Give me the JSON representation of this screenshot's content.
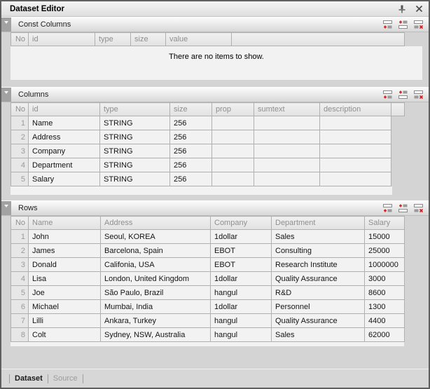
{
  "window": {
    "title": "Dataset Editor"
  },
  "colors": {
    "accent_red": "#d02020",
    "panel_bg": "#d4d4d4",
    "grid_body_bg": "#f2f2f2",
    "grid_header_bg": "#e7e7e7",
    "header_text": "#8f8f8f"
  },
  "icons": {
    "titlebar": [
      "pin-icon",
      "close-icon"
    ],
    "section_tools": [
      "add-row-icon",
      "insert-row-icon",
      "delete-row-icon"
    ],
    "collapse": "chevron-down-icon"
  },
  "sections": {
    "const_columns": {
      "title": "Const Columns",
      "headers": [
        "No",
        "id",
        "type",
        "size",
        "value",
        ""
      ],
      "empty_message": "There are no items to show."
    },
    "columns": {
      "title": "Columns",
      "headers": [
        "No",
        "id",
        "type",
        "size",
        "prop",
        "sumtext",
        "description",
        ""
      ],
      "rows": [
        {
          "no": "1",
          "id": "Name",
          "type": "STRING",
          "size": "256",
          "prop": "",
          "sumtext": "",
          "description": ""
        },
        {
          "no": "2",
          "id": "Address",
          "type": "STRING",
          "size": "256",
          "prop": "",
          "sumtext": "",
          "description": ""
        },
        {
          "no": "3",
          "id": "Company",
          "type": "STRING",
          "size": "256",
          "prop": "",
          "sumtext": "",
          "description": ""
        },
        {
          "no": "4",
          "id": "Department",
          "type": "STRING",
          "size": "256",
          "prop": "",
          "sumtext": "",
          "description": ""
        },
        {
          "no": "5",
          "id": "Salary",
          "type": "STRING",
          "size": "256",
          "prop": "",
          "sumtext": "",
          "description": ""
        }
      ]
    },
    "rows": {
      "title": "Rows",
      "headers": [
        "No",
        "Name",
        "Address",
        "Company",
        "Department",
        "Salary"
      ],
      "rows": [
        {
          "no": "1",
          "name": "John",
          "address": "Seoul, KOREA",
          "company": "1dollar",
          "department": "Sales",
          "salary": "15000"
        },
        {
          "no": "2",
          "name": "James",
          "address": "Barcelona, Spain",
          "company": "EBOT",
          "department": "Consulting",
          "salary": "25000"
        },
        {
          "no": "3",
          "name": "Donald",
          "address": "Califonia, USA",
          "company": "EBOT",
          "department": "Research Institute",
          "salary": "1000000"
        },
        {
          "no": "4",
          "name": "Lisa",
          "address": "London, United Kingdom",
          "company": "1dollar",
          "department": "Quality Assurance",
          "salary": "3000"
        },
        {
          "no": "5",
          "name": "Joe",
          "address": "São Paulo, Brazil",
          "company": "hangul",
          "department": "R&D",
          "salary": "8600"
        },
        {
          "no": "6",
          "name": "Michael",
          "address": "Mumbai, India",
          "company": "1dollar",
          "department": "Personnel",
          "salary": "1300"
        },
        {
          "no": "7",
          "name": "Lilli",
          "address": "Ankara, Turkey",
          "company": "hangul",
          "department": "Quality Assurance",
          "salary": "4400"
        },
        {
          "no": "8",
          "name": "Colt",
          "address": "Sydney, NSW, Australia",
          "company": "hangul",
          "department": "Sales",
          "salary": "62000"
        }
      ]
    }
  },
  "tabs": [
    {
      "label": "Dataset",
      "active": true
    },
    {
      "label": "Source",
      "active": false
    }
  ]
}
